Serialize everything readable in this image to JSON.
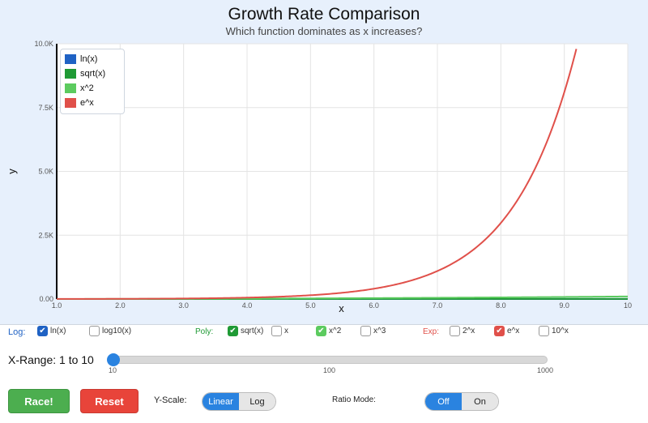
{
  "chart_data": {
    "type": "line",
    "title": "Growth Rate Comparison",
    "subtitle": "Which function dominates as x increases?",
    "xlabel": "x",
    "ylabel": "y",
    "xlim": [
      1.0,
      10
    ],
    "ylim": [
      0,
      10000
    ],
    "x_ticks": [
      "1.0",
      "2.0",
      "3.0",
      "4.0",
      "5.0",
      "6.0",
      "7.0",
      "8.0",
      "9.0",
      "10"
    ],
    "y_ticks": [
      "0.00",
      "2.5K",
      "5.0K",
      "7.5K",
      "10.0K"
    ],
    "y_tick_values": [
      0,
      2500,
      5000,
      7500,
      10000
    ],
    "grid": true,
    "legend_position": "top-left",
    "series": [
      {
        "name": "ln(x)",
        "fn": "ln",
        "color": "#1f62c4"
      },
      {
        "name": "sqrt(x)",
        "fn": "sqrt",
        "color": "#1f9a35"
      },
      {
        "name": "x^2",
        "fn": "square",
        "color": "#5ccb5f"
      },
      {
        "name": "e^x",
        "fn": "exp",
        "color": "#e0504a"
      }
    ]
  },
  "functions": {
    "log_label": "Log:",
    "poly_label": "Poly:",
    "exp_label": "Exp:",
    "log_color": "#1f62c4",
    "poly_color": "#1f9a35",
    "exp_color": "#e0504a",
    "log_items": [
      {
        "label": "ln(x)",
        "checked": true
      },
      {
        "label": "log10(x)",
        "checked": false
      }
    ],
    "poly_items": [
      {
        "label": "sqrt(x)",
        "checked": true
      },
      {
        "label": "x",
        "checked": false
      },
      {
        "label": "x^2",
        "checked": true
      },
      {
        "label": "x^3",
        "checked": false
      }
    ],
    "exp_items": [
      {
        "label": "2^x",
        "checked": false
      },
      {
        "label": "e^x",
        "checked": true
      },
      {
        "label": "10^x",
        "checked": false
      }
    ]
  },
  "range": {
    "label": "X-Range: 1 to 10",
    "value": 10,
    "tick_labels": [
      "10",
      "100",
      "1000"
    ]
  },
  "buttons": {
    "race_label": "Race!",
    "reset_label": "Reset",
    "race_color": "#4cae4f",
    "reset_color": "#e8443a"
  },
  "y_scale": {
    "label": "Y-Scale:",
    "options": [
      "Linear",
      "Log"
    ],
    "selected": "Linear"
  },
  "ratio_mode": {
    "label": "Ratio Mode:",
    "options": [
      "Off",
      "On"
    ],
    "selected": "Off"
  }
}
